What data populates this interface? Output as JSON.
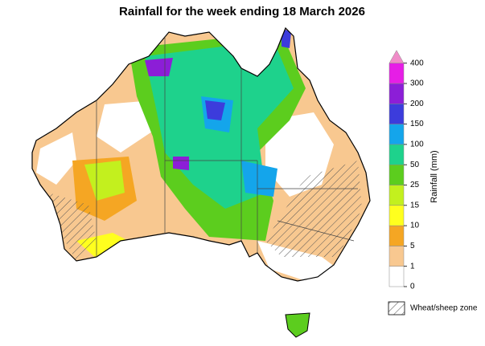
{
  "title": "Rainfall for the week ending 18 March 2026",
  "legend": {
    "label": "Rainfall (mm)",
    "ticks": [
      0,
      1,
      5,
      10,
      15,
      25,
      50,
      100,
      150,
      200,
      300,
      400
    ],
    "colors": [
      "#ffffff",
      "#f8c890",
      "#f5a623",
      "#ffff1e",
      "#c3f01e",
      "#5ccd1e",
      "#1ed28c",
      "#14a5eb",
      "#3c3cdc",
      "#8c1ed7",
      "#e61ee6",
      "#f08cc8"
    ],
    "hatch_label": "Wheat/sheep zone"
  }
}
